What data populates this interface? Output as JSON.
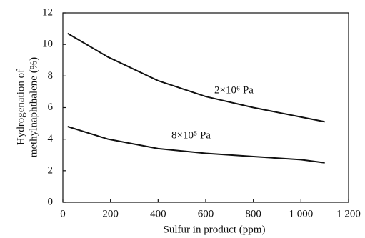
{
  "chart_data": {
    "type": "line",
    "x_label": "Sulfur in product (ppm)",
    "y_label": [
      "Hydrogenation of",
      "methylnaphthalene (%)"
    ],
    "x": [
      20,
      190,
      400,
      600,
      800,
      1000,
      1100
    ],
    "series": [
      {
        "name": "2×10⁶ Pa",
        "color": "#111111",
        "values": [
          10.7,
          9.2,
          7.7,
          6.7,
          6.0,
          5.4,
          5.1
        ]
      },
      {
        "name": "8×10⁵ Pa",
        "color": "#111111",
        "values": [
          4.8,
          4.0,
          3.4,
          3.1,
          2.9,
          2.7,
          2.5
        ]
      }
    ],
    "xlim": [
      0,
      1200
    ],
    "xticks": [
      0,
      200,
      400,
      600,
      800,
      {
        "value": 1000,
        "label": "1 000"
      },
      {
        "value": 1200,
        "label": "1 200"
      }
    ],
    "ylim": [
      0,
      12
    ],
    "yticks": [
      0,
      2,
      4,
      6,
      8,
      10,
      12
    ],
    "grid": false
  }
}
